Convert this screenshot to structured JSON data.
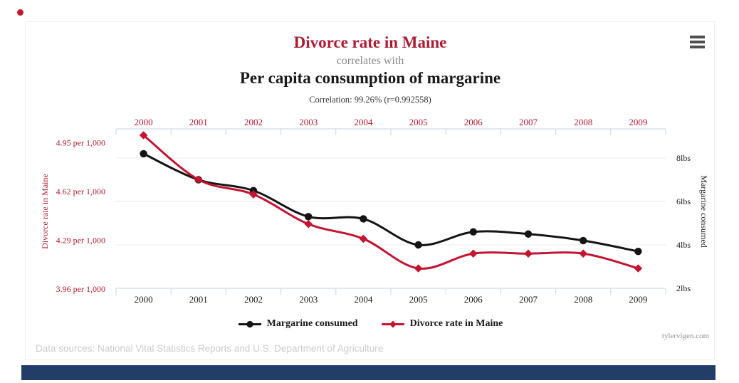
{
  "window": {
    "indicator_dot_color": "#c21a2c",
    "bottom_bar_color": "#223d68"
  },
  "header": {
    "title_red": "Divorce rate in Maine",
    "connector": "correlates with",
    "title_black": "Per capita consumption of margarine",
    "correlation": "Correlation: 99.26% (r=0.992558)"
  },
  "menu": {
    "icon": "hamburger-menu"
  },
  "watermark": "tylervigen.com",
  "footer": "Data sources: National Vital Statistics Reports and U.S. Department of Agriculture",
  "colors": {
    "red_line": "#c31432",
    "red_text": "#ae1c33",
    "black_line": "#141414",
    "grid": "#e9e9e9",
    "axis": "#c7d5df",
    "text_gray": "#8a8a8a",
    "footer_gray": "#cccccc"
  },
  "chart_data": {
    "type": "line",
    "title": "Divorce rate in Maine correlates with Per capita consumption of margarine",
    "subtitle": "Correlation: 99.26% (r=0.992558)",
    "x": [
      2000,
      2001,
      2002,
      2003,
      2004,
      2005,
      2006,
      2007,
      2008,
      2009
    ],
    "series": [
      {
        "name": "Margarine consumed",
        "axis": "right",
        "marker": "circle",
        "color": "#141414",
        "unit": "lbs",
        "values": [
          8.2,
          7,
          6.5,
          5.3,
          5.2,
          4,
          4.6,
          4.5,
          4.2,
          3.7
        ]
      },
      {
        "name": "Divorce rate in Maine",
        "axis": "left",
        "marker": "diamond",
        "color": "#c31432",
        "unit": "per 1,000",
        "values": [
          5.0,
          4.7,
          4.6,
          4.4,
          4.3,
          4.1,
          4.2,
          4.2,
          4.2,
          4.1
        ]
      }
    ],
    "left_axis": {
      "title": "Divorce rate in Maine",
      "tick_labels": [
        "4.95 per 1,000",
        "4.62 per 1,000",
        "4.29 per 1,000",
        "3.96 per 1,000"
      ],
      "tick_values": [
        4.95,
        4.62,
        4.29,
        3.96
      ]
    },
    "right_axis": {
      "title": "Margarine consumed",
      "tick_labels": [
        "8lbs",
        "6lbs",
        "4lbs",
        "2lbs"
      ],
      "tick_values": [
        8,
        6,
        4,
        2
      ]
    },
    "x_axis_top_labels": [
      "2000",
      "2001",
      "2002",
      "2003",
      "2004",
      "2005",
      "2006",
      "2007",
      "2008",
      "2009"
    ],
    "x_axis_bottom_labels": [
      "2000",
      "2001",
      "2002",
      "2003",
      "2004",
      "2005",
      "2006",
      "2007",
      "2008",
      "2009"
    ],
    "grid": true,
    "legend_position": "bottom"
  }
}
